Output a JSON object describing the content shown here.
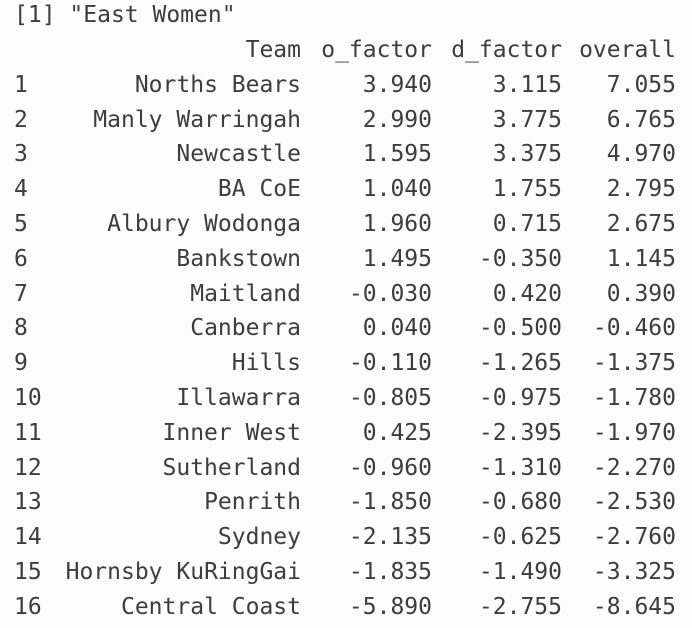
{
  "output": {
    "prefix": "[1]",
    "title": "\"East Women\""
  },
  "table": {
    "headers": {
      "team": "Team",
      "o_factor": "o_factor",
      "d_factor": "d_factor",
      "overall": "overall"
    },
    "rows": [
      {
        "idx": "1",
        "team": "Norths Bears",
        "o_factor": "3.940",
        "d_factor": "3.115",
        "overall": "7.055"
      },
      {
        "idx": "2",
        "team": "Manly Warringah",
        "o_factor": "2.990",
        "d_factor": "3.775",
        "overall": "6.765"
      },
      {
        "idx": "3",
        "team": "Newcastle",
        "o_factor": "1.595",
        "d_factor": "3.375",
        "overall": "4.970"
      },
      {
        "idx": "4",
        "team": "BA CoE",
        "o_factor": "1.040",
        "d_factor": "1.755",
        "overall": "2.795"
      },
      {
        "idx": "5",
        "team": "Albury Wodonga",
        "o_factor": "1.960",
        "d_factor": "0.715",
        "overall": "2.675"
      },
      {
        "idx": "6",
        "team": "Bankstown",
        "o_factor": "1.495",
        "d_factor": "-0.350",
        "overall": "1.145"
      },
      {
        "idx": "7",
        "team": "Maitland",
        "o_factor": "-0.030",
        "d_factor": "0.420",
        "overall": "0.390"
      },
      {
        "idx": "8",
        "team": "Canberra",
        "o_factor": "0.040",
        "d_factor": "-0.500",
        "overall": "-0.460"
      },
      {
        "idx": "9",
        "team": "Hills",
        "o_factor": "-0.110",
        "d_factor": "-1.265",
        "overall": "-1.375"
      },
      {
        "idx": "10",
        "team": "Illawarra",
        "o_factor": "-0.805",
        "d_factor": "-0.975",
        "overall": "-1.780"
      },
      {
        "idx": "11",
        "team": "Inner West",
        "o_factor": "0.425",
        "d_factor": "-2.395",
        "overall": "-1.970"
      },
      {
        "idx": "12",
        "team": "Sutherland",
        "o_factor": "-0.960",
        "d_factor": "-1.310",
        "overall": "-2.270"
      },
      {
        "idx": "13",
        "team": "Penrith",
        "o_factor": "-1.850",
        "d_factor": "-0.680",
        "overall": "-2.530"
      },
      {
        "idx": "14",
        "team": "Sydney",
        "o_factor": "-2.135",
        "d_factor": "-0.625",
        "overall": "-2.760"
      },
      {
        "idx": "15",
        "team": "Hornsby KuRingGai",
        "o_factor": "-1.835",
        "d_factor": "-1.490",
        "overall": "-3.325"
      },
      {
        "idx": "16",
        "team": "Central Coast",
        "o_factor": "-5.890",
        "d_factor": "-2.755",
        "overall": "-8.645"
      }
    ]
  },
  "colors": {
    "background": "#fcfcfc",
    "text": "#3d3d3d"
  }
}
